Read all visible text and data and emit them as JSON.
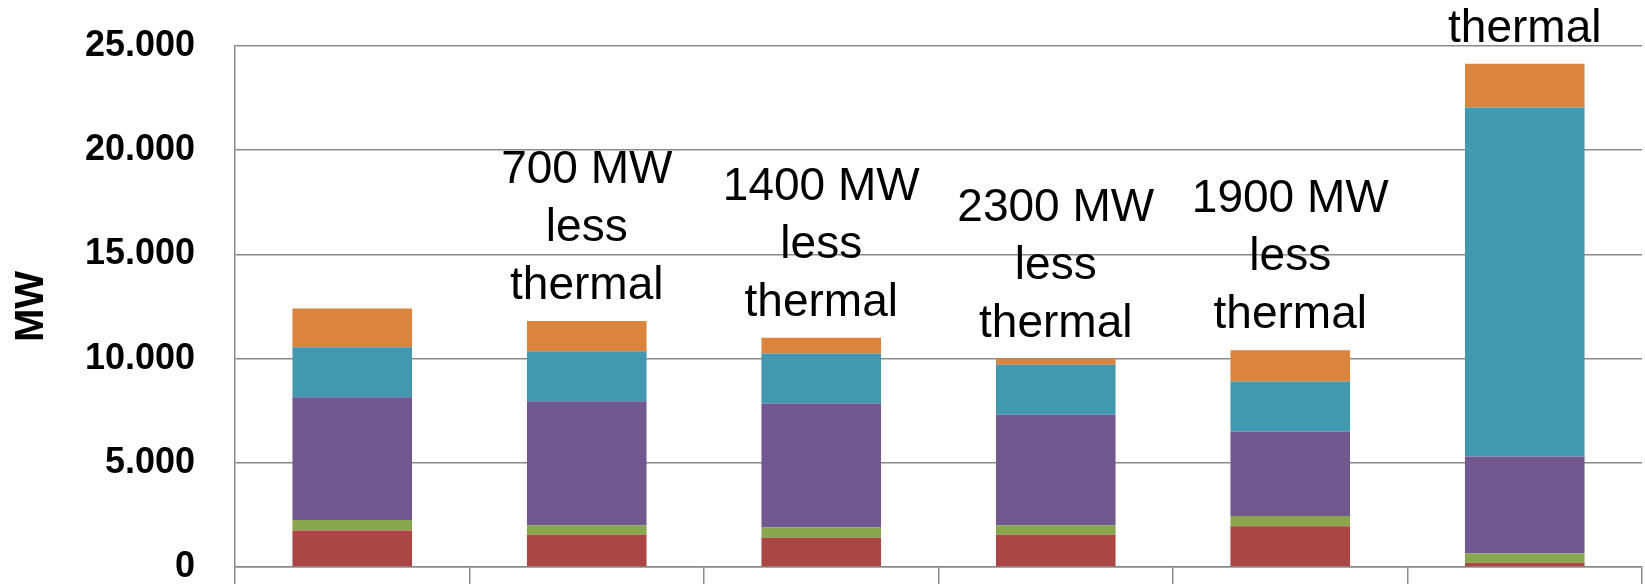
{
  "chart_data": {
    "type": "bar",
    "stacked": true,
    "categories": [
      null,
      null,
      null,
      null,
      null,
      null
    ],
    "series": [
      {
        "color": "#aa4643",
        "values": [
          1750,
          1550,
          1400,
          1550,
          1950,
          200
        ]
      },
      {
        "color": "#89a54e",
        "values": [
          500,
          450,
          500,
          450,
          500,
          450
        ]
      },
      {
        "color": "#71588f",
        "values": [
          5900,
          5950,
          5950,
          5300,
          4050,
          4650
        ]
      },
      {
        "color": "#4198af",
        "values": [
          2400,
          2400,
          2400,
          2400,
          2400,
          16750
        ]
      },
      {
        "color": "#db843d",
        "values": [
          1850,
          1450,
          750,
          300,
          1500,
          2100
        ]
      }
    ],
    "ylabel": "MW",
    "ylim": [
      0,
      25000
    ],
    "yticks": [
      0,
      {
        "value": 5000,
        "label": "5.000"
      },
      {
        "value": 10000,
        "label": "10.000"
      },
      {
        "value": 15000,
        "label": "15.000"
      },
      {
        "value": 20000,
        "label": "20.000"
      },
      {
        "value": 25000,
        "label": "25.000"
      }
    ],
    "grid": "y",
    "tick_labels": "y",
    "annotations": [
      "700 MW less thermal",
      "1400 MW less thermal",
      "2300 MW less thermal",
      "1900 MW less thermal",
      "thermal"
    ]
  }
}
